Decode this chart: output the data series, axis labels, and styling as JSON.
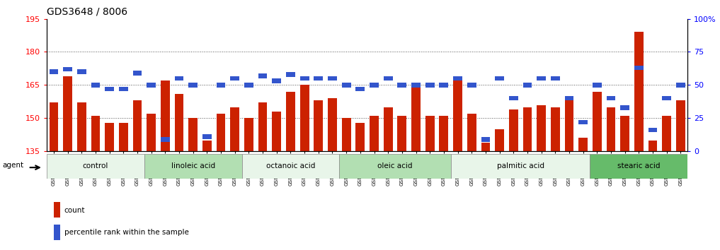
{
  "title": "GDS3648 / 8006",
  "samples": [
    "GSM525196",
    "GSM525197",
    "GSM525198",
    "GSM525199",
    "GSM525200",
    "GSM525201",
    "GSM525202",
    "GSM525203",
    "GSM525204",
    "GSM525205",
    "GSM525206",
    "GSM525207",
    "GSM525208",
    "GSM525209",
    "GSM525210",
    "GSM525211",
    "GSM525212",
    "GSM525213",
    "GSM525214",
    "GSM525215",
    "GSM525216",
    "GSM525217",
    "GSM525218",
    "GSM525219",
    "GSM525220",
    "GSM525221",
    "GSM525222",
    "GSM525223",
    "GSM525224",
    "GSM525225",
    "GSM525226",
    "GSM525227",
    "GSM525228",
    "GSM525229",
    "GSM525230",
    "GSM525231",
    "GSM525232",
    "GSM525233",
    "GSM525234",
    "GSM525235",
    "GSM525236",
    "GSM525237",
    "GSM525238",
    "GSM525239",
    "GSM525240",
    "GSM525241"
  ],
  "count_values": [
    157,
    169,
    157,
    151,
    148,
    148,
    158,
    152,
    167,
    161,
    150,
    140,
    152,
    155,
    150,
    157,
    153,
    162,
    165,
    158,
    159,
    150,
    148,
    151,
    155,
    151,
    165,
    151,
    151,
    169,
    152,
    139,
    145,
    154,
    155,
    156,
    155,
    158,
    141,
    162,
    155,
    151,
    189,
    140,
    151,
    158
  ],
  "percentile_values": [
    60,
    62,
    60,
    50,
    47,
    47,
    59,
    50,
    9,
    55,
    50,
    11,
    50,
    55,
    50,
    57,
    53,
    58,
    55,
    55,
    55,
    50,
    47,
    50,
    55,
    50,
    50,
    50,
    50,
    55,
    50,
    9,
    55,
    40,
    50,
    55,
    55,
    40,
    22,
    50,
    40,
    33,
    63,
    16,
    40,
    50
  ],
  "groups": [
    {
      "name": "control",
      "start": 0,
      "end": 7
    },
    {
      "name": "linoleic acid",
      "start": 7,
      "end": 14
    },
    {
      "name": "octanoic acid",
      "start": 14,
      "end": 21
    },
    {
      "name": "oleic acid",
      "start": 21,
      "end": 29
    },
    {
      "name": "palmitic acid",
      "start": 29,
      "end": 39
    },
    {
      "name": "stearic acid",
      "start": 39,
      "end": 46
    }
  ],
  "group_colors": [
    "#e8f5e9",
    "#b2dfb2",
    "#e8f5e9",
    "#b2dfb2",
    "#e8f5e9",
    "#66bb6a"
  ],
  "ymin": 135,
  "ymax": 195,
  "yticks": [
    135,
    150,
    165,
    180,
    195
  ],
  "y2min": 0,
  "y2max": 100,
  "y2ticks": [
    0,
    25,
    50,
    75,
    100
  ],
  "bar_color_red": "#cc2200",
  "bar_color_blue": "#3355cc",
  "bg_color": "#ffffff"
}
